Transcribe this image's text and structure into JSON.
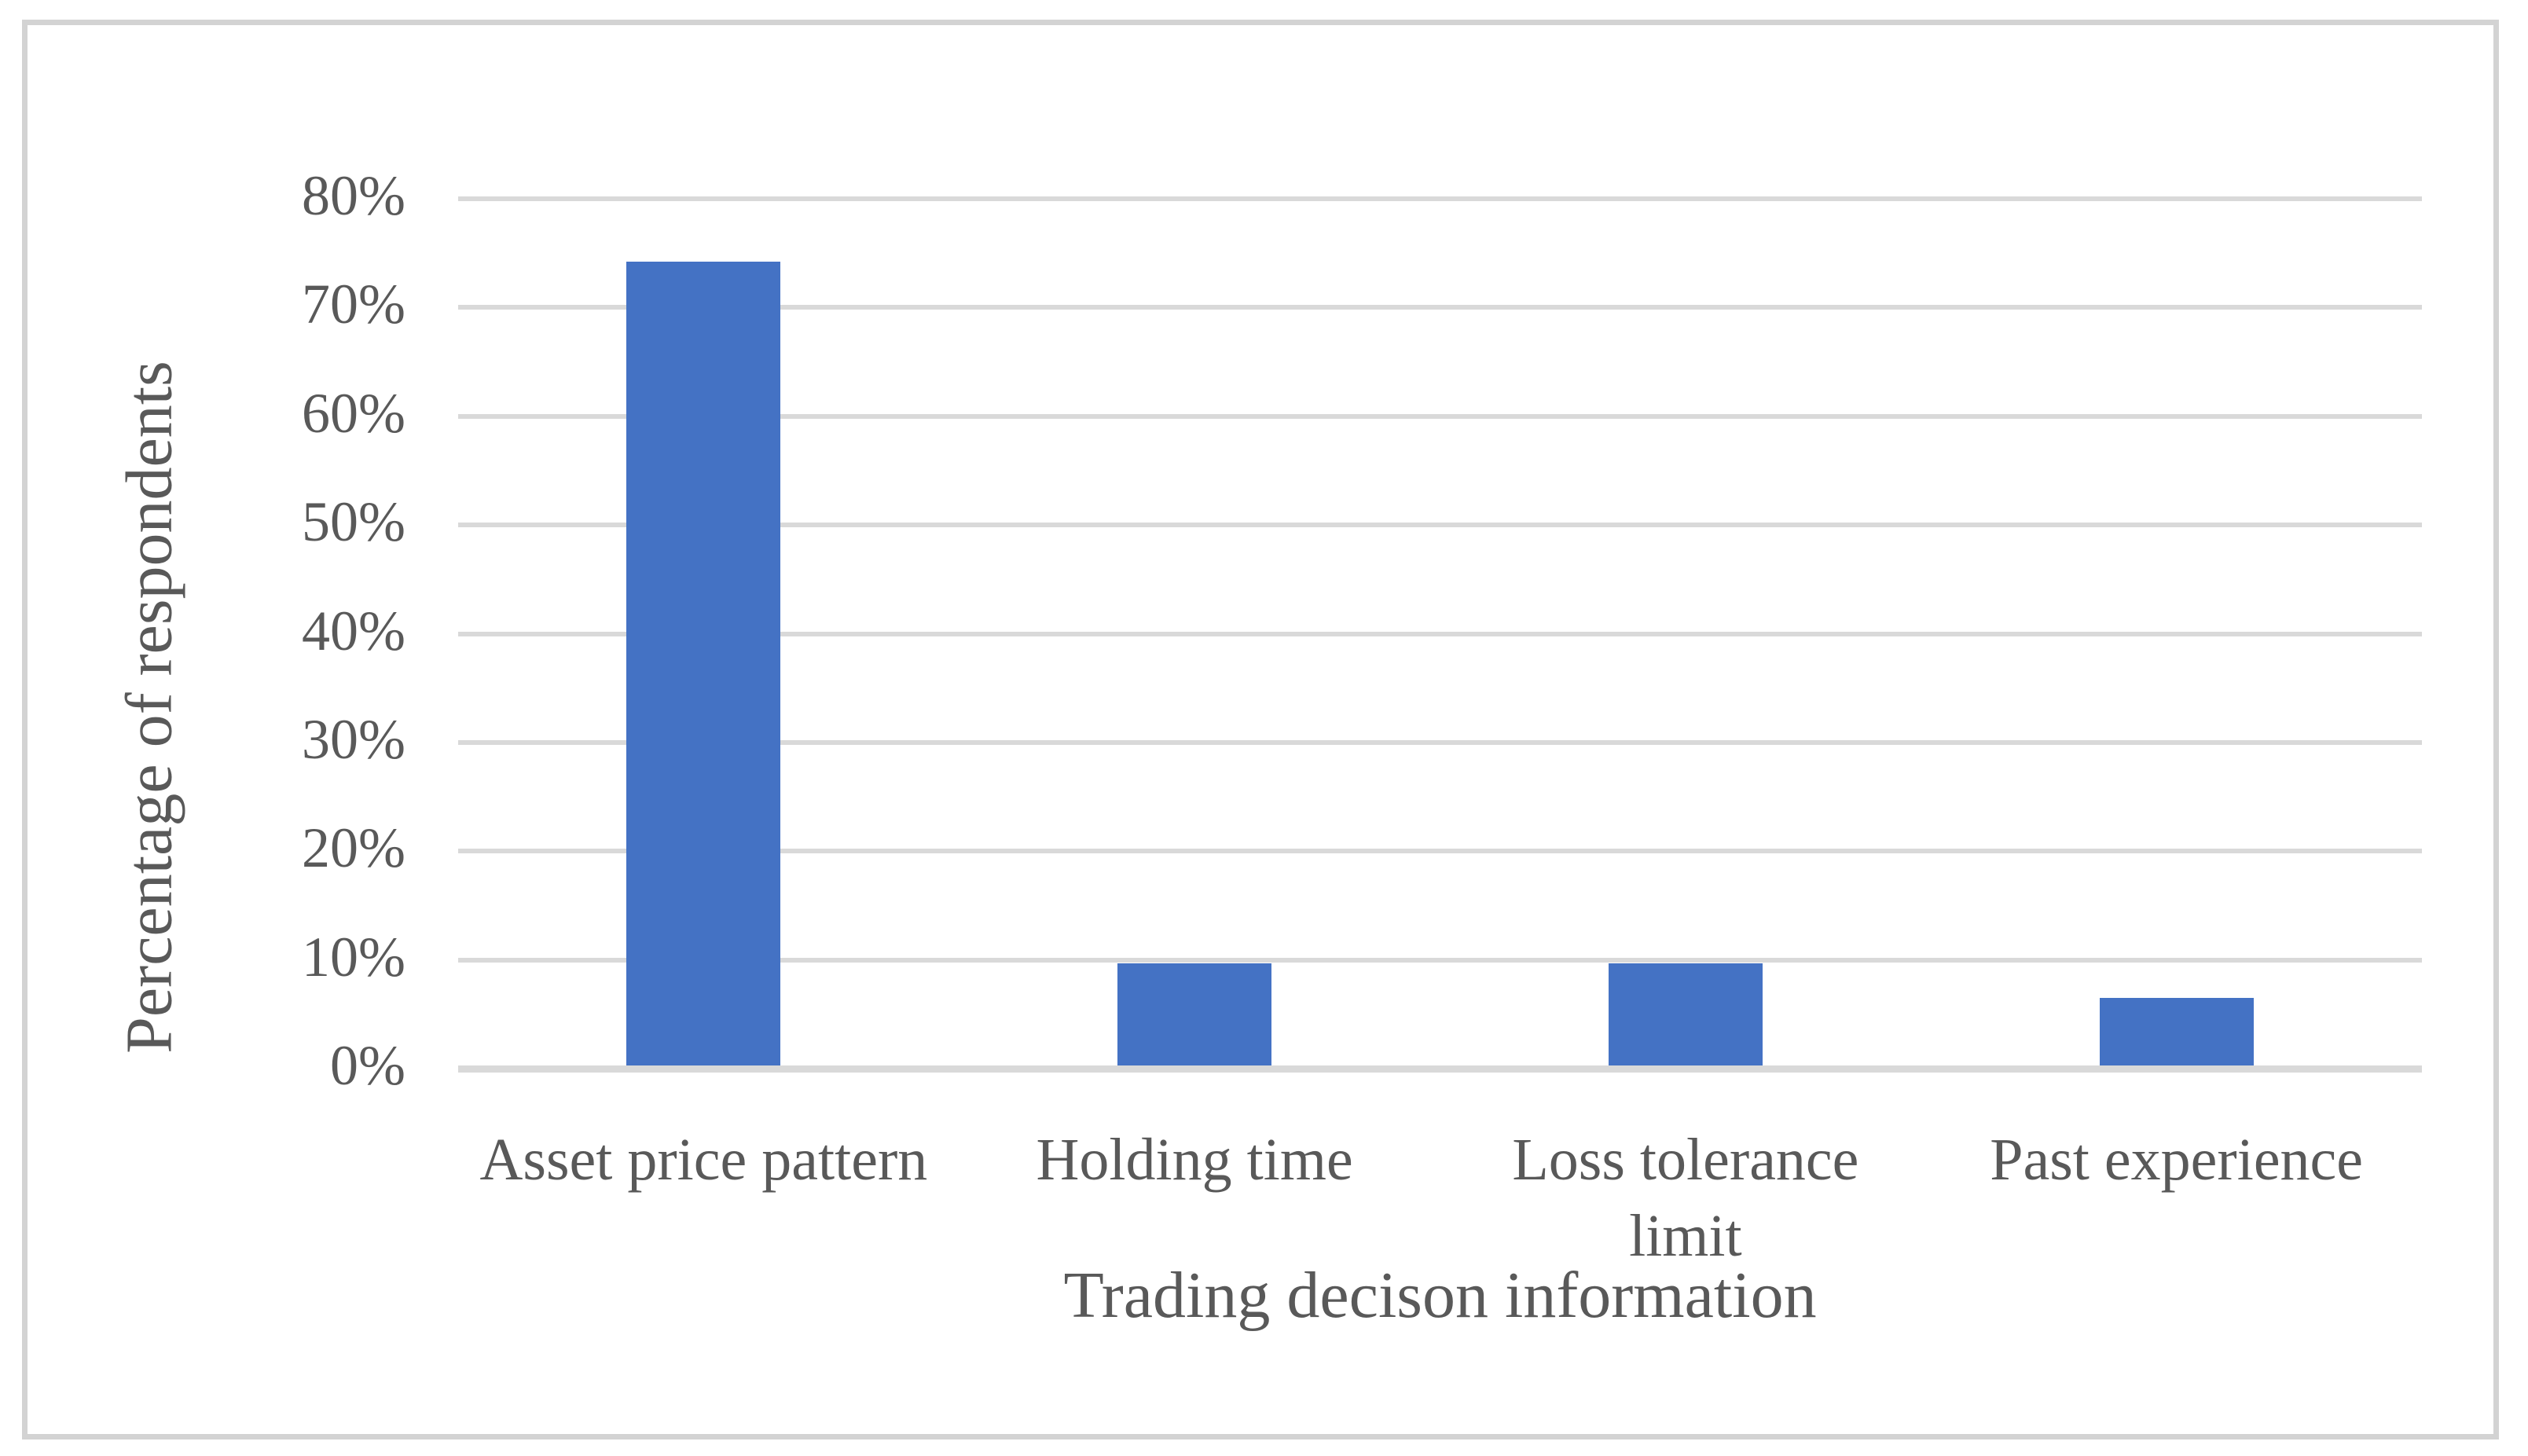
{
  "figure": {
    "frame_color": "#d3d3d3",
    "background_color": "#ffffff"
  },
  "chart_data": {
    "type": "bar",
    "title": "",
    "xlabel": "Trading decison information",
    "ylabel": "Percentage of respondents",
    "categories": [
      "Asset price pattern",
      "Holding time",
      "Loss tolerance limit",
      "Past experience"
    ],
    "values": [
      74.2,
      9.7,
      9.7,
      6.5
    ],
    "value_unit": "%",
    "ylim": [
      0,
      80
    ],
    "ytick_step": 10,
    "ytick_labels": [
      "0%",
      "10%",
      "20%",
      "30%",
      "40%",
      "50%",
      "60%",
      "70%",
      "80%"
    ],
    "grid": "horizontal",
    "legend": "none",
    "bar_color": "#4472c4",
    "gridline_color": "#d9d9d9",
    "text_color": "#595959"
  }
}
